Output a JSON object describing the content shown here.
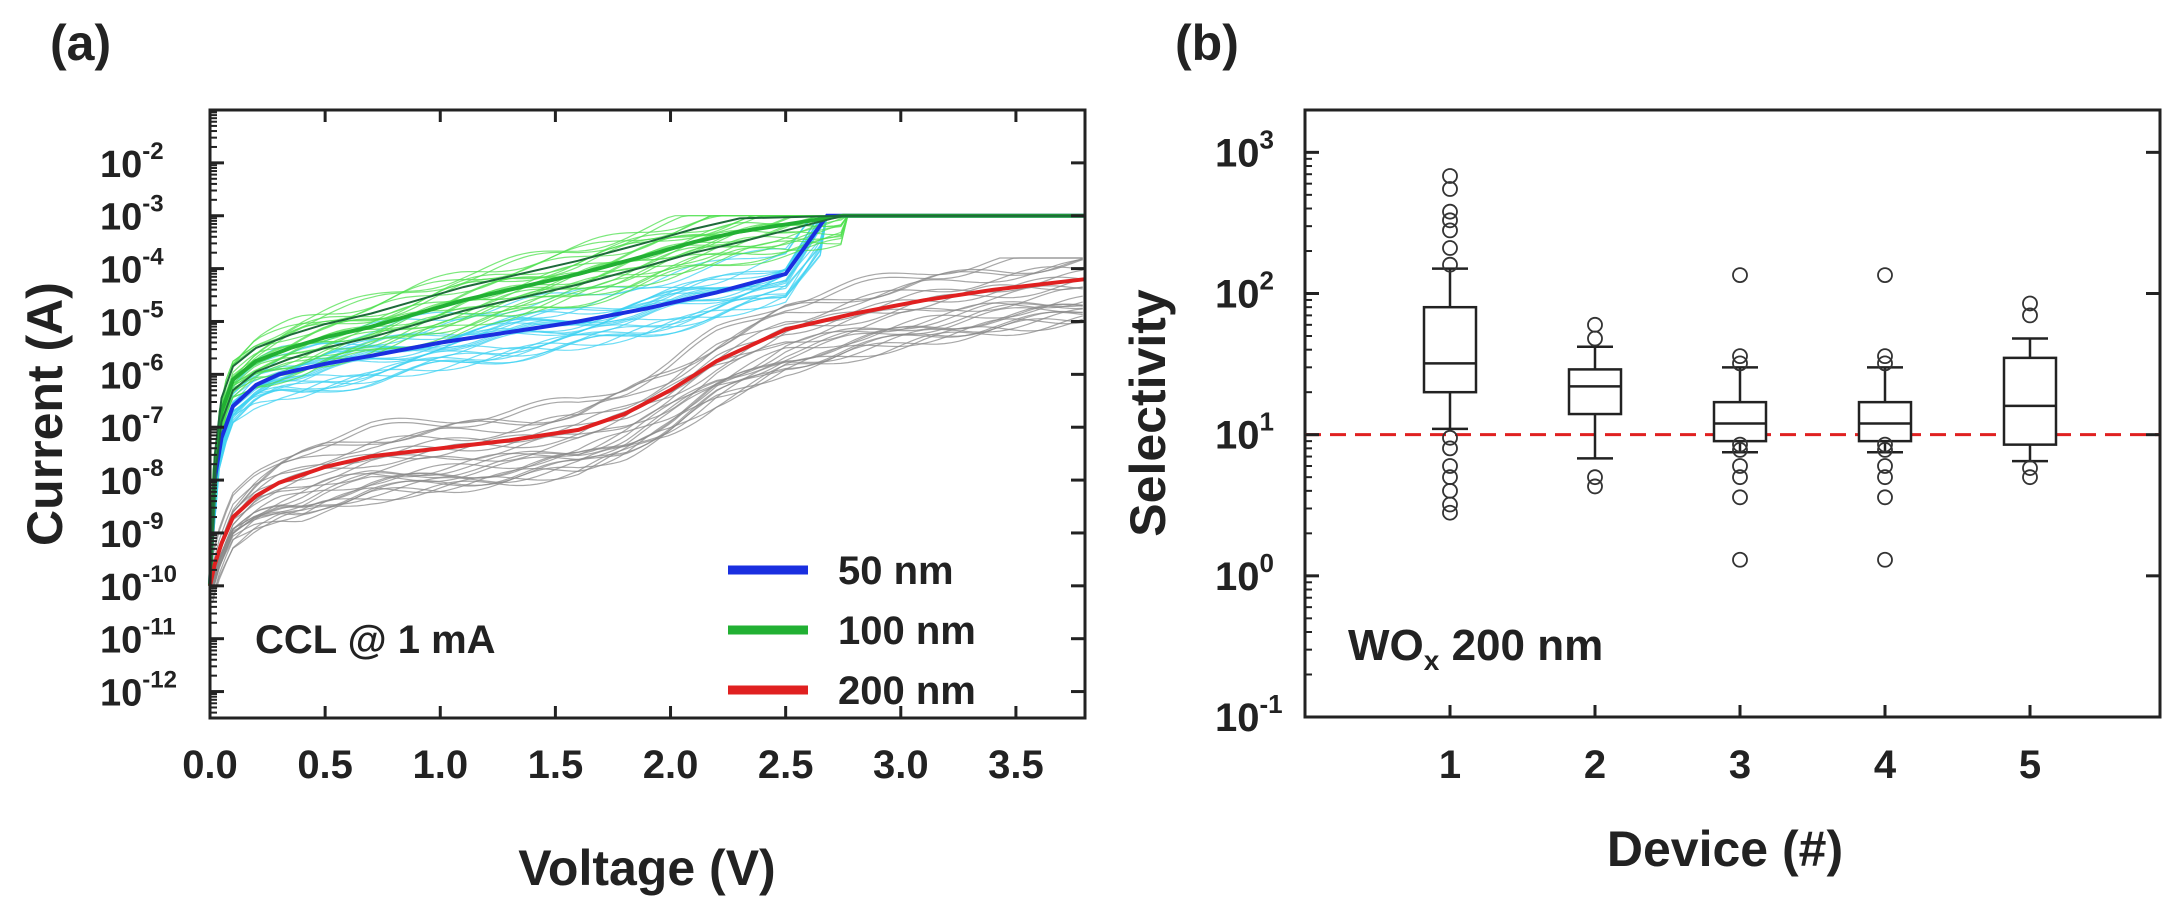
{
  "chart_data": [
    {
      "panel_label": "(a)",
      "type": "line",
      "xlabel": "Voltage (V)",
      "ylabel": "Current (A)",
      "xlim": [
        0,
        3.8
      ],
      "ylim_log10": [
        -12.5,
        -1.0
      ],
      "yscale": "log",
      "xticks": [
        0,
        0.5,
        1,
        1.5,
        2,
        2.5,
        3,
        3.5
      ],
      "xtick_labels": [
        "0.0",
        "0.5",
        "1.0",
        "1.5",
        "2.0",
        "2.5",
        "3.0",
        "3.5"
      ],
      "yticks": [
        {
          "mantissa": "10",
          "exp": "-2",
          "v": -2
        },
        {
          "mantissa": "10",
          "exp": "-3",
          "v": -3
        },
        {
          "mantissa": "10",
          "exp": "-4",
          "v": -4
        },
        {
          "mantissa": "10",
          "exp": "-5",
          "v": -5
        },
        {
          "mantissa": "10",
          "exp": "-6",
          "v": -6
        },
        {
          "mantissa": "10",
          "exp": "-7",
          "v": -7
        },
        {
          "mantissa": "10",
          "exp": "-8",
          "v": -8
        },
        {
          "mantissa": "10",
          "exp": "-9",
          "v": -9
        },
        {
          "mantissa": "10",
          "exp": "-10",
          "v": -10
        },
        {
          "mantissa": "10",
          "exp": "-11",
          "v": -11
        },
        {
          "mantissa": "10",
          "exp": "-12",
          "v": -12
        }
      ],
      "annotation": "CCL @ 1 mA",
      "legend_position": "bottom-right",
      "legend": [
        {
          "label": "50 nm",
          "color": "#1a2fe0"
        },
        {
          "label": "100 nm",
          "color": "#22b033"
        },
        {
          "label": "200 nm",
          "color": "#e02020"
        }
      ],
      "series": [
        {
          "name": "50 nm",
          "color": "#1a2fe0",
          "halo_color": "#3fd2f2",
          "x": [
            0,
            0.02,
            0.05,
            0.1,
            0.2,
            0.3,
            0.5,
            0.7,
            1.0,
            1.3,
            1.6,
            1.9,
            2.2,
            2.5,
            2.68,
            3.8
          ],
          "log10_current": [
            -10,
            -8,
            -7.2,
            -6.6,
            -6.2,
            -6.0,
            -5.8,
            -5.65,
            -5.4,
            -5.2,
            -5.0,
            -4.75,
            -4.45,
            -4.1,
            -3,
            -3
          ]
        },
        {
          "name": "100 nm",
          "color": "#22b033",
          "halo_color": "#4fe04f",
          "x": [
            0,
            0.02,
            0.05,
            0.1,
            0.2,
            0.35,
            0.5,
            0.7,
            0.9,
            1.1,
            1.3,
            1.6,
            1.9,
            2.1,
            2.3,
            2.75,
            3.8
          ],
          "log10_current": [
            -10,
            -7.8,
            -6.7,
            -6.1,
            -5.75,
            -5.5,
            -5.3,
            -5.1,
            -4.85,
            -4.6,
            -4.4,
            -4.1,
            -3.75,
            -3.5,
            -3.3,
            -3,
            -3
          ]
        },
        {
          "name": "200 nm",
          "color": "#e02020",
          "halo_color": "#8a8a8a",
          "x": [
            0,
            0.02,
            0.05,
            0.1,
            0.2,
            0.3,
            0.5,
            0.7,
            1.0,
            1.3,
            1.6,
            1.8,
            2.0,
            2.2,
            2.5,
            2.8,
            3.1,
            3.4,
            3.8
          ],
          "log10_current": [
            -10,
            -9.6,
            -9.2,
            -8.7,
            -8.3,
            -8.05,
            -7.75,
            -7.55,
            -7.4,
            -7.25,
            -7.05,
            -6.75,
            -6.3,
            -5.75,
            -5.15,
            -4.85,
            -4.6,
            -4.4,
            -4.2
          ]
        }
      ]
    },
    {
      "panel_label": "(b)",
      "type": "box",
      "xlabel": "Device (#)",
      "ylabel": "Selectivity",
      "yscale": "log",
      "ylim_log10": [
        -1,
        3.3
      ],
      "yticks": [
        {
          "mantissa": "10",
          "exp": "3",
          "v": 3
        },
        {
          "mantissa": "10",
          "exp": "2",
          "v": 2
        },
        {
          "mantissa": "10",
          "exp": "1",
          "v": 1
        },
        {
          "mantissa": "10",
          "exp": "0",
          "v": 0
        },
        {
          "mantissa": "10",
          "exp": "-1",
          "v": -1
        }
      ],
      "annotation_main": "WO",
      "annotation_sub": "x",
      "annotation_rest": " 200 nm",
      "reference_line": {
        "value": 10,
        "color": "#e02020",
        "style": "dashed"
      },
      "categories": [
        "1",
        "2",
        "3",
        "4",
        "5"
      ],
      "boxes": [
        {
          "device": "1",
          "whisker_low": 11,
          "q1": 20,
          "median": 32,
          "q3": 80,
          "whisker_high": 150,
          "outliers": [
            2.8,
            3.2,
            4,
            5,
            6,
            8,
            9.5,
            160,
            210,
            280,
            330,
            380,
            550,
            680
          ]
        },
        {
          "device": "2",
          "whisker_low": 6.8,
          "q1": 14,
          "median": 22,
          "q3": 29,
          "whisker_high": 42,
          "outliers": [
            4.3,
            5,
            48,
            60
          ]
        },
        {
          "device": "3",
          "whisker_low": 7.5,
          "q1": 9,
          "median": 12,
          "q3": 17,
          "whisker_high": 30,
          "outliers": [
            1.3,
            3.6,
            5,
            6,
            7.8,
            8.5,
            32,
            36,
            135
          ]
        },
        {
          "device": "4",
          "whisker_low": 7.5,
          "q1": 9,
          "median": 12,
          "q3": 17,
          "whisker_high": 30,
          "outliers": [
            1.3,
            3.6,
            5,
            6,
            7.8,
            8.5,
            32,
            36,
            135
          ]
        },
        {
          "device": "5",
          "whisker_low": 6.5,
          "q1": 8.5,
          "median": 16,
          "q3": 35,
          "whisker_high": 48,
          "outliers": [
            5,
            5.8,
            70,
            85
          ]
        }
      ]
    }
  ]
}
